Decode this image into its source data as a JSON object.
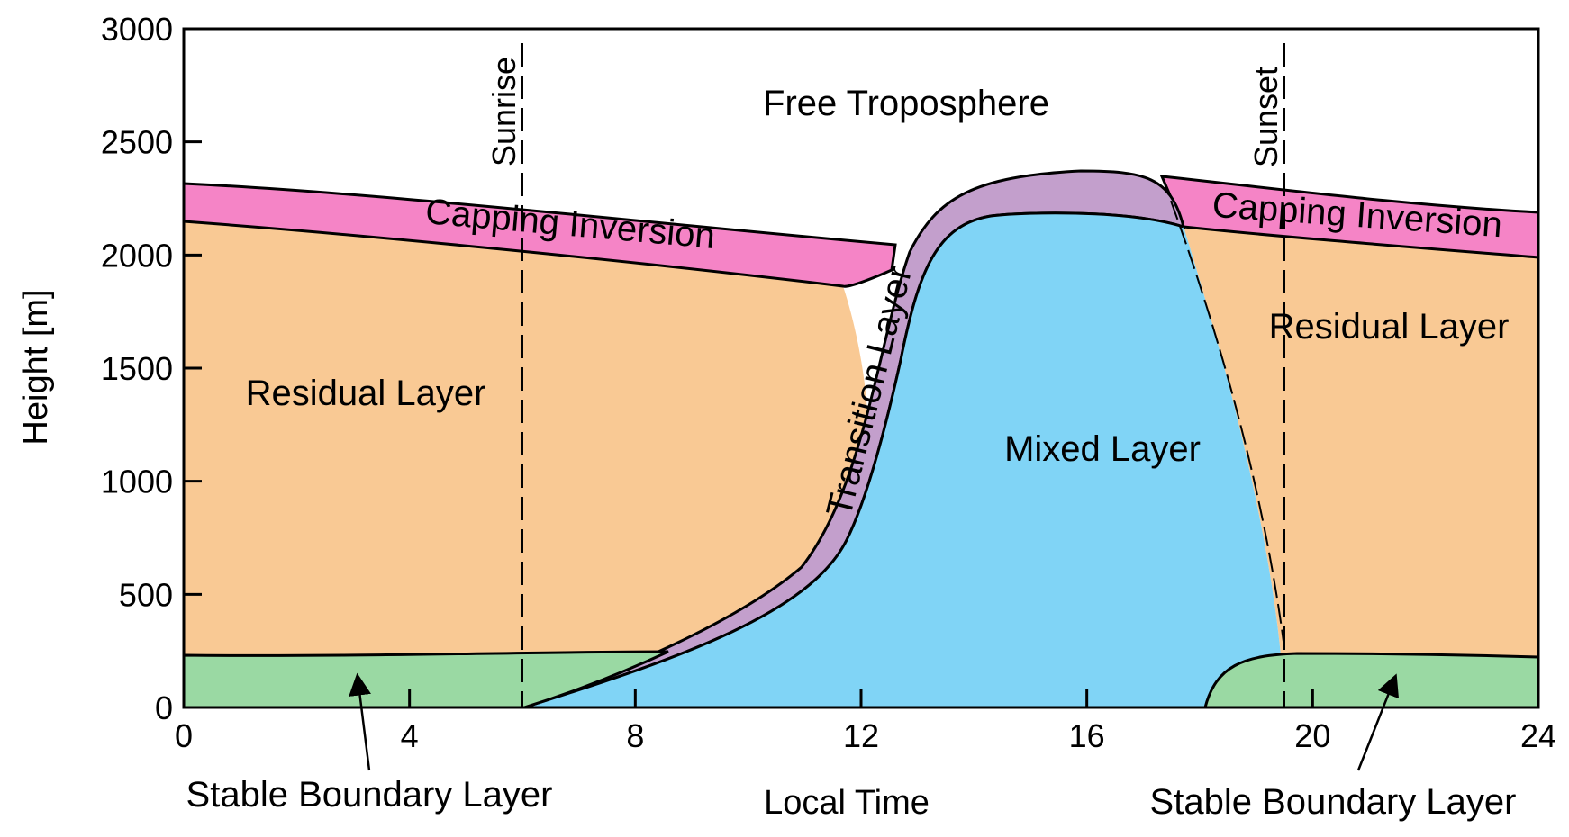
{
  "chart_data": {
    "type": "area",
    "title": "",
    "xlabel": "Local Time",
    "ylabel": "Height [m]",
    "xlim": [
      0,
      24
    ],
    "ylim": [
      0,
      3000
    ],
    "x_ticks": [
      0,
      4,
      8,
      12,
      16,
      20,
      24
    ],
    "y_ticks": [
      0,
      500,
      1000,
      1500,
      2000,
      2500,
      3000
    ],
    "events": [
      {
        "name": "Sunrise",
        "x": 6
      },
      {
        "name": "Sunset",
        "x": 19.5
      }
    ],
    "layers": [
      {
        "name": "Free Troposphere",
        "color": "#ffffff"
      },
      {
        "name": "Capping Inversion",
        "color": "#f584c6"
      },
      {
        "name": "Residual Layer",
        "color": "#f9c994"
      },
      {
        "name": "Transition Layer",
        "color": "#c39fcc"
      },
      {
        "name": "Mixed Layer",
        "color": "#80d4f6"
      },
      {
        "name": "Stable Boundary Layer",
        "color": "#9ad9a3"
      }
    ],
    "labels": {
      "free_troposphere": "Free Troposphere",
      "capping_inversion_left": "Capping Inversion",
      "capping_inversion_right": "Capping Inversion",
      "residual_left": "Residual Layer",
      "residual_right": "Residual Layer",
      "transition": "Transition Layer",
      "mixed": "Mixed Layer",
      "stable_left": "Stable Boundary Layer",
      "stable_right": "Stable Boundary Layer"
    },
    "boundaries": {
      "inversion_top_left": [
        [
          0,
          2310
        ],
        [
          6,
          2240
        ],
        [
          10,
          2100
        ],
        [
          12.5,
          2060
        ]
      ],
      "inversion_bottom_left": [
        [
          0,
          2150
        ],
        [
          6,
          2060
        ],
        [
          10,
          1920
        ],
        [
          12.5,
          1870
        ]
      ],
      "residual_top_right": [
        [
          17.8,
          2150
        ],
        [
          20,
          2090
        ],
        [
          24,
          1990
        ]
      ],
      "inversion_top_right": [
        [
          17.5,
          2350
        ],
        [
          20,
          2300
        ],
        [
          24,
          2200
        ]
      ],
      "stable_top_left": [
        [
          0,
          220
        ],
        [
          4,
          235
        ],
        [
          8.5,
          250
        ]
      ],
      "stable_top_right": [
        [
          18,
          0
        ],
        [
          18.6,
          210
        ],
        [
          20,
          240
        ],
        [
          24,
          225
        ]
      ],
      "transition_top": [
        [
          6,
          0
        ],
        [
          8.5,
          230
        ],
        [
          11.2,
          700
        ],
        [
          12.2,
          1500
        ],
        [
          13,
          2050
        ],
        [
          14.5,
          2340
        ],
        [
          16,
          2380
        ],
        [
          17.5,
          2350
        ]
      ],
      "mixed_top": [
        [
          6,
          0
        ],
        [
          9,
          250
        ],
        [
          11.7,
          800
        ],
        [
          12.8,
          1500
        ],
        [
          13.8,
          2050
        ],
        [
          15.4,
          2200
        ],
        [
          17.8,
          2150
        ]
      ],
      "mixed_collapse_right": [
        [
          17.3,
          2350
        ],
        [
          18.5,
          1500
        ],
        [
          19.3,
          600
        ],
        [
          19.5,
          250
        ]
      ]
    }
  }
}
